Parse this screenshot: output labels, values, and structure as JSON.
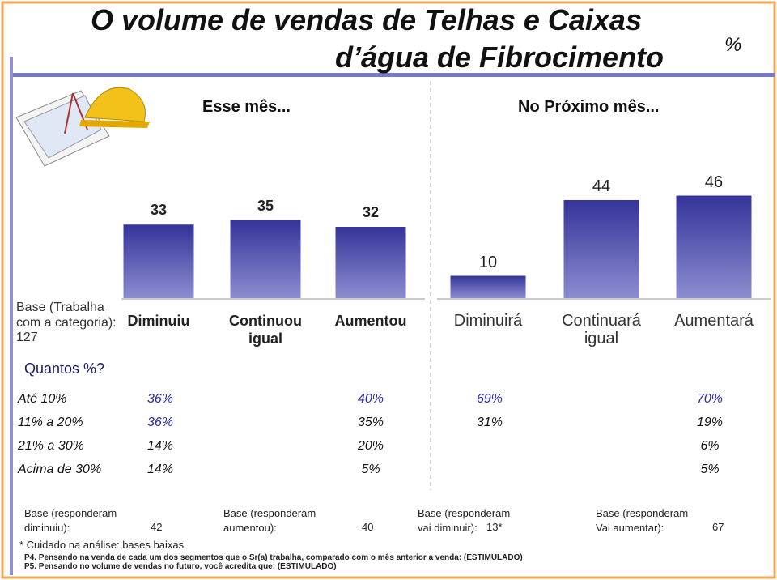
{
  "title": [
    "O volume de vendas de Telhas e Caixas",
    "d’água de Fibrocimento"
  ],
  "unit": "%",
  "sample_base": {
    "label": "Base (Trabalha com a categoria):",
    "value": "127"
  },
  "question": "Quantos %?",
  "chart_data": [
    {
      "type": "bar",
      "title": "Esse mês...",
      "categories": [
        "Diminuiu",
        "Continuou igual",
        "Aumentou"
      ],
      "values": [
        33,
        35,
        32
      ],
      "color": "#34349a"
    },
    {
      "type": "bar",
      "title": "No Próximo mês...",
      "categories": [
        "Diminuirá",
        "Continuará igual",
        "Aumentará"
      ],
      "values": [
        10,
        44,
        46
      ],
      "color": "#34349a"
    }
  ],
  "table": {
    "row_labels": [
      "Até 10%",
      "11% a 20%",
      "21% a 30%",
      "Acima de 30%"
    ],
    "columns": [
      [
        "36%",
        "36%",
        "14%",
        "14%"
      ],
      [
        "40%",
        "35%",
        "20%",
        "5%"
      ],
      [
        "69%",
        "31%",
        null,
        null
      ],
      [
        "70%",
        "19%",
        "6%",
        "5%"
      ]
    ]
  },
  "bases": [
    {
      "label": "Base (responderam diminuiu):",
      "value": "42"
    },
    {
      "label": "Base (responderam aumentou):",
      "value": "40"
    },
    {
      "label": "Base (responderam vai diminuir):",
      "value": "13*"
    },
    {
      "label": "Base (responderam Vai aumentar):",
      "value": "67"
    }
  ],
  "notes": [
    "* Cuidado na análise: bases baixas",
    "P4. Pensando na venda de cada um dos segmentos que o Sr(a) trabalha, comparado com o mês anterior a venda: (ESTIMULADO)",
    "P5. Pensando no volume de vendas no futuro, você acredita que: (ESTIMULADO)"
  ]
}
